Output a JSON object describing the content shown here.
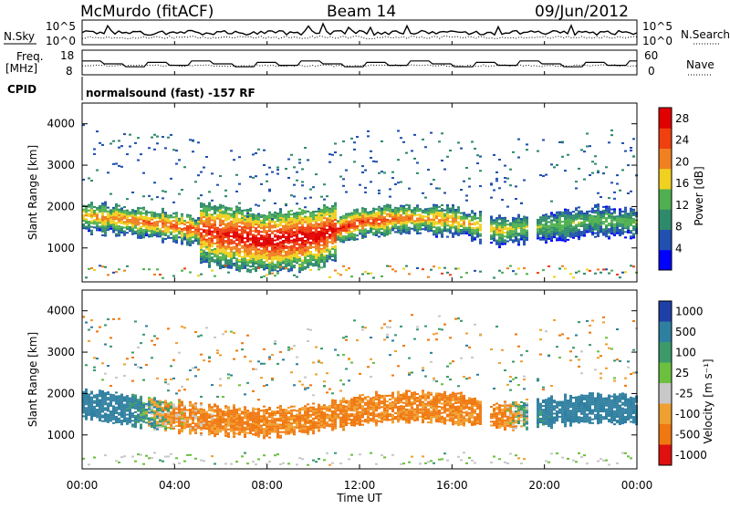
{
  "header": {
    "station": "McMurdo (fitACF)",
    "beam": "Beam 14",
    "date": "09/Jun/2012"
  },
  "summary": {
    "nsky_label": "N.Sky",
    "nsearch_label": "N.Search",
    "noise_ticks_left": [
      "10^5",
      "10^0"
    ],
    "noise_ticks_right": [
      "10^5",
      "10^0"
    ],
    "freq_label": [
      "Freq.",
      "[MHz]"
    ],
    "freq_ticks": [
      "18",
      "8"
    ],
    "nave_label": "Nave",
    "nave_ticks": [
      "60",
      "0"
    ],
    "cpid_label": "CPID",
    "cpid_text": "normalsound (fast) -157 RF"
  },
  "chart_data": [
    {
      "type": "heatmap",
      "title": "",
      "xlabel": "",
      "ylabel": "Slant Range [km]",
      "xlim": [
        "00:00",
        "24:00"
      ],
      "ylim": [
        180,
        4500
      ],
      "yticks": [
        1000,
        2000,
        3000,
        4000
      ],
      "colorbar": {
        "label": "Power [dB]",
        "ticks": [
          4,
          8,
          12,
          16,
          20,
          24,
          28
        ],
        "range": [
          0,
          30
        ],
        "colors": [
          "#0000ff",
          "#2050b0",
          "#2e8a6a",
          "#50b050",
          "#f0d020",
          "#f08020",
          "#f04010",
          "#e00000"
        ]
      },
      "main_band": [
        {
          "time": "00:00",
          "center_km": 1750,
          "power_db": 20
        },
        {
          "time": "02:00",
          "center_km": 1650,
          "power_db": 22
        },
        {
          "time": "04:00",
          "center_km": 1500,
          "power_db": 24
        },
        {
          "time": "06:00",
          "center_km": 1300,
          "power_db": 28
        },
        {
          "time": "08:00",
          "center_km": 1150,
          "power_db": 30
        },
        {
          "time": "10:00",
          "center_km": 1250,
          "power_db": 30
        },
        {
          "time": "12:00",
          "center_km": 1600,
          "power_db": 26
        },
        {
          "time": "14:00",
          "center_km": 1700,
          "power_db": 22
        },
        {
          "time": "16:00",
          "center_km": 1650,
          "power_db": 20
        },
        {
          "time": "18:00",
          "center_km": 1400,
          "power_db": 18
        },
        {
          "time": "20:00",
          "center_km": 1500,
          "power_db": 14
        },
        {
          "time": "22:00",
          "center_km": 1650,
          "power_db": 14
        },
        {
          "time": "24:00",
          "center_km": 1600,
          "power_db": 14
        }
      ]
    },
    {
      "type": "heatmap",
      "title": "",
      "xlabel": "Time UT",
      "ylabel": "Slant Range [km]",
      "xlim": [
        "00:00",
        "24:00"
      ],
      "xticks": [
        "00:00",
        "04:00",
        "08:00",
        "12:00",
        "16:00",
        "20:00",
        "00:00"
      ],
      "ylim": [
        180,
        4500
      ],
      "yticks": [
        1000,
        2000,
        3000,
        4000
      ],
      "colorbar": {
        "label": "Velocity [m s⁻¹]",
        "ticks": [
          "1000",
          "500",
          "100",
          "25",
          "-25",
          "-100",
          "-500",
          "-1000"
        ],
        "colors": [
          "#1f3fa8",
          "#2f7fa0",
          "#3c9a6a",
          "#6cc040",
          "#c8c8c8",
          "#f0a030",
          "#f07810",
          "#e01010"
        ]
      },
      "main_band": [
        {
          "time": "00:00",
          "center_km": 1750,
          "velocity_ms": 300
        },
        {
          "time": "02:00",
          "center_km": 1600,
          "velocity_ms": 200
        },
        {
          "time": "04:00",
          "center_km": 1450,
          "velocity_ms": -100
        },
        {
          "time": "06:00",
          "center_km": 1350,
          "velocity_ms": -150
        },
        {
          "time": "08:00",
          "center_km": 1300,
          "velocity_ms": -150
        },
        {
          "time": "10:00",
          "center_km": 1400,
          "velocity_ms": -150
        },
        {
          "time": "12:00",
          "center_km": 1600,
          "velocity_ms": -150
        },
        {
          "time": "14:00",
          "center_km": 1700,
          "velocity_ms": -150
        },
        {
          "time": "16:00",
          "center_km": 1650,
          "velocity_ms": -150
        },
        {
          "time": "18:00",
          "center_km": 1450,
          "velocity_ms": -150
        },
        {
          "time": "20:00",
          "center_km": 1550,
          "velocity_ms": 200
        },
        {
          "time": "22:00",
          "center_km": 1650,
          "velocity_ms": 300
        },
        {
          "time": "24:00",
          "center_km": 1600,
          "velocity_ms": 300
        }
      ]
    }
  ]
}
